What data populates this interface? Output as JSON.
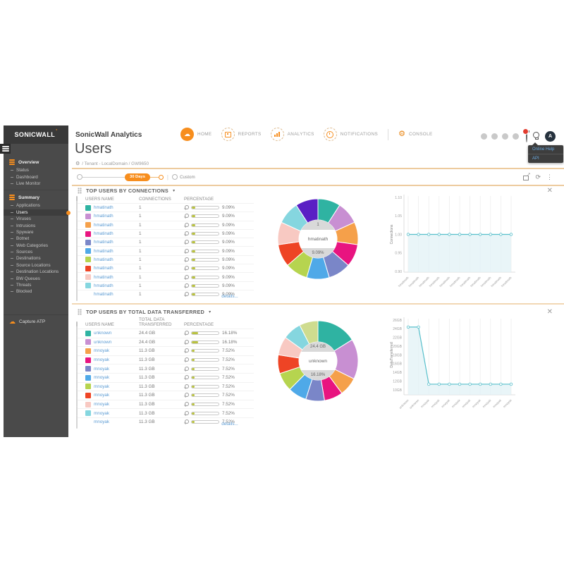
{
  "icons": {
    "cloud": "☁",
    "gear": "⚙",
    "caret_down": "▾",
    "close": "✕",
    "refresh": "⟳",
    "kebab": "⋮",
    "export_arrow": "↗",
    "logo_tick": "’"
  },
  "sidebar": {
    "logo": "SONICWALL",
    "groups": [
      {
        "label": "Overview",
        "items": [
          {
            "label": "Status"
          },
          {
            "label": "Dashboard"
          },
          {
            "label": "Live Monitor"
          }
        ]
      },
      {
        "label": "Summary",
        "items": [
          {
            "label": "Applications"
          },
          {
            "label": "Users",
            "active": true
          },
          {
            "label": "Viruses"
          },
          {
            "label": "Intrusions"
          },
          {
            "label": "Spyware"
          },
          {
            "label": "Botnet"
          },
          {
            "label": "Web Categories"
          },
          {
            "label": "Sources"
          },
          {
            "label": "Destinations"
          },
          {
            "label": "Source Locations"
          },
          {
            "label": "Destination Locations"
          },
          {
            "label": "BW Queues"
          },
          {
            "label": "Threats"
          },
          {
            "label": "Blocked"
          }
        ]
      }
    ],
    "footer_item": "Capture ATP"
  },
  "header": {
    "product": "SonicWall Analytics",
    "nav": [
      {
        "label": "HOME"
      },
      {
        "label": "REPORTS"
      },
      {
        "label": "ANALYTICS"
      },
      {
        "label": "NOTIFICATIONS"
      },
      {
        "label": "CONSOLE"
      }
    ],
    "avatar_initial": "A",
    "help_menu": {
      "items": [
        {
          "label": "Online Help"
        },
        {
          "label": "API"
        }
      ]
    }
  },
  "page": {
    "title": "Users",
    "breadcrumb": "/ Tenant - LocalDomain / GW9650"
  },
  "toolbar": {
    "range_label": "30 Days",
    "custom_label": "Custom"
  },
  "sections": [
    {
      "title": "TOP USERS BY CONNECTIONS",
      "columns": [
        "USERS NAME",
        "CONNECTIONS",
        "PERCENTAGE"
      ],
      "details_label": "details...",
      "rows": [
        {
          "name": "hmatinath",
          "value": "1",
          "pct": "9.09%",
          "pct_num": 9.09,
          "color": "#2fb3a2"
        },
        {
          "name": "hmatinath",
          "value": "1",
          "pct": "9.09%",
          "pct_num": 9.09,
          "color": "#c88fd2"
        },
        {
          "name": "hmatinath",
          "value": "1",
          "pct": "9.09%",
          "pct_num": 9.09,
          "color": "#f5a04a"
        },
        {
          "name": "hmatinath",
          "value": "1",
          "pct": "9.09%",
          "pct_num": 9.09,
          "color": "#e81480"
        },
        {
          "name": "hmatinath",
          "value": "1",
          "pct": "9.09%",
          "pct_num": 9.09,
          "color": "#7a86c8"
        },
        {
          "name": "hmatinath",
          "value": "1",
          "pct": "9.09%",
          "pct_num": 9.09,
          "color": "#4fa9e8"
        },
        {
          "name": "hmatinath",
          "value": "1",
          "pct": "9.09%",
          "pct_num": 9.09,
          "color": "#b6d44f"
        },
        {
          "name": "hmatinath",
          "value": "1",
          "pct": "9.09%",
          "pct_num": 9.09,
          "color": "#ee4425"
        },
        {
          "name": "hmatinath",
          "value": "1",
          "pct": "9.09%",
          "pct_num": 9.09,
          "color": "#f8c9c2"
        },
        {
          "name": "hmatinath",
          "value": "1",
          "pct": "9.09%",
          "pct_num": 9.09,
          "color": "#85d6df"
        },
        {
          "name": "hmatinath",
          "value": "1",
          "pct": "9.09%",
          "pct_num": 9.09,
          "color": null
        }
      ],
      "donut": {
        "values": [
          9.09,
          9.09,
          9.09,
          9.09,
          9.09,
          9.09,
          9.09,
          9.09,
          9.09,
          9.09,
          9.09
        ],
        "colors": [
          "#2fb3a2",
          "#c88fd2",
          "#f5a04a",
          "#e81480",
          "#7a86c8",
          "#4fa9e8",
          "#b6d44f",
          "#ee4425",
          "#f8c9c2",
          "#85d6df",
          "#5a20c4"
        ],
        "center": {
          "value": "1",
          "name": "hmatinath",
          "pct": "9.09%"
        }
      },
      "chart": {
        "type": "area",
        "ylabel": "Connections",
        "ymin": 0.9,
        "ymax": 1.1,
        "yticks": [
          {
            "v": 1.1,
            "label": "1.10"
          },
          {
            "v": 1.05,
            "label": "1.05"
          },
          {
            "v": 1.0,
            "label": "1.00"
          },
          {
            "v": 0.95,
            "label": "0.95"
          },
          {
            "v": 0.9,
            "label": "0.90"
          }
        ],
        "values": [
          1,
          1,
          1,
          1,
          1,
          1,
          1,
          1,
          1,
          1,
          1
        ],
        "x_labels": [
          "hmatinath",
          "hmatinath",
          "hmatinath",
          "hmatinath",
          "hmatinath",
          "hmatinath",
          "hmatinath",
          "hmatinath",
          "hmatinath",
          "hmatinath",
          "hmatinath"
        ],
        "line_color": "#57bfcb",
        "fill_color": "#e2f1f5"
      }
    },
    {
      "title": "TOP USERS BY TOTAL DATA TRANSFERRED",
      "columns": [
        "USERS NAME",
        "TOTAL DATA TRANSFERRED",
        "PERCENTAGE"
      ],
      "details_label": "details...",
      "rows": [
        {
          "name": "unknown",
          "value": "24.4 GB",
          "pct": "16.18%",
          "pct_num": 16.18,
          "color": "#2fb3a2"
        },
        {
          "name": "unknown",
          "value": "24.4 GB",
          "pct": "16.18%",
          "pct_num": 16.18,
          "color": "#c88fd2"
        },
        {
          "name": "mnoyak",
          "value": "11.3 GB",
          "pct": "7.52%",
          "pct_num": 7.52,
          "color": "#f5a04a"
        },
        {
          "name": "mnoyak",
          "value": "11.3 GB",
          "pct": "7.52%",
          "pct_num": 7.52,
          "color": "#e81480"
        },
        {
          "name": "mnoyak",
          "value": "11.3 GB",
          "pct": "7.52%",
          "pct_num": 7.52,
          "color": "#7a86c8"
        },
        {
          "name": "mnoyak",
          "value": "11.3 GB",
          "pct": "7.52%",
          "pct_num": 7.52,
          "color": "#4fa9e8"
        },
        {
          "name": "mnoyak",
          "value": "11.3 GB",
          "pct": "7.52%",
          "pct_num": 7.52,
          "color": "#b6d44f"
        },
        {
          "name": "mnoyak",
          "value": "11.3 GB",
          "pct": "7.52%",
          "pct_num": 7.52,
          "color": "#ee4425"
        },
        {
          "name": "mnoyak",
          "value": "11.3 GB",
          "pct": "7.52%",
          "pct_num": 7.52,
          "color": "#f8c9c2"
        },
        {
          "name": "mnoyak",
          "value": "11.3 GB",
          "pct": "7.52%",
          "pct_num": 7.52,
          "color": "#85d6df"
        },
        {
          "name": "mnoyak",
          "value": "11.3 GB",
          "pct": "7.52%",
          "pct_num": 7.52,
          "color": null
        }
      ],
      "donut": {
        "values": [
          16.18,
          16.18,
          7.52,
          7.52,
          7.52,
          7.52,
          7.52,
          7.52,
          7.52,
          7.52,
          7.52
        ],
        "colors": [
          "#2fb3a2",
          "#c88fd2",
          "#f5a04a",
          "#e81480",
          "#7a86c8",
          "#4fa9e8",
          "#b6d44f",
          "#ee4425",
          "#f8c9c2",
          "#85d6df",
          "#cfdc8f"
        ],
        "center": {
          "value": "24.4 GB",
          "name": "unknown",
          "pct": "16.18%"
        }
      },
      "chart": {
        "type": "area",
        "ylabel": "DataTransferred",
        "ymin": 10,
        "ymax": 26,
        "yticks": [
          {
            "v": 26,
            "label": "26GB"
          },
          {
            "v": 24,
            "label": "24GB"
          },
          {
            "v": 22,
            "label": "22GB"
          },
          {
            "v": 20,
            "label": "20GB"
          },
          {
            "v": 18,
            "label": "18GB"
          },
          {
            "v": 16,
            "label": "16GB"
          },
          {
            "v": 14,
            "label": "14GB"
          },
          {
            "v": 12,
            "label": "12GB"
          },
          {
            "v": 10,
            "label": "10GB"
          }
        ],
        "values": [
          24.4,
          24.4,
          11.3,
          11.3,
          11.3,
          11.3,
          11.3,
          11.3,
          11.3,
          11.3,
          11.3
        ],
        "x_labels": [
          "unknown",
          "unknown",
          "mnoyak",
          "mnoyak",
          "mnoyak",
          "mnoyak",
          "mnoyak",
          "mnoyak",
          "mnoyak",
          "mnoyak",
          "mnoyak"
        ],
        "line_color": "#57bfcb",
        "fill_color": "#e2f1f5"
      }
    }
  ]
}
